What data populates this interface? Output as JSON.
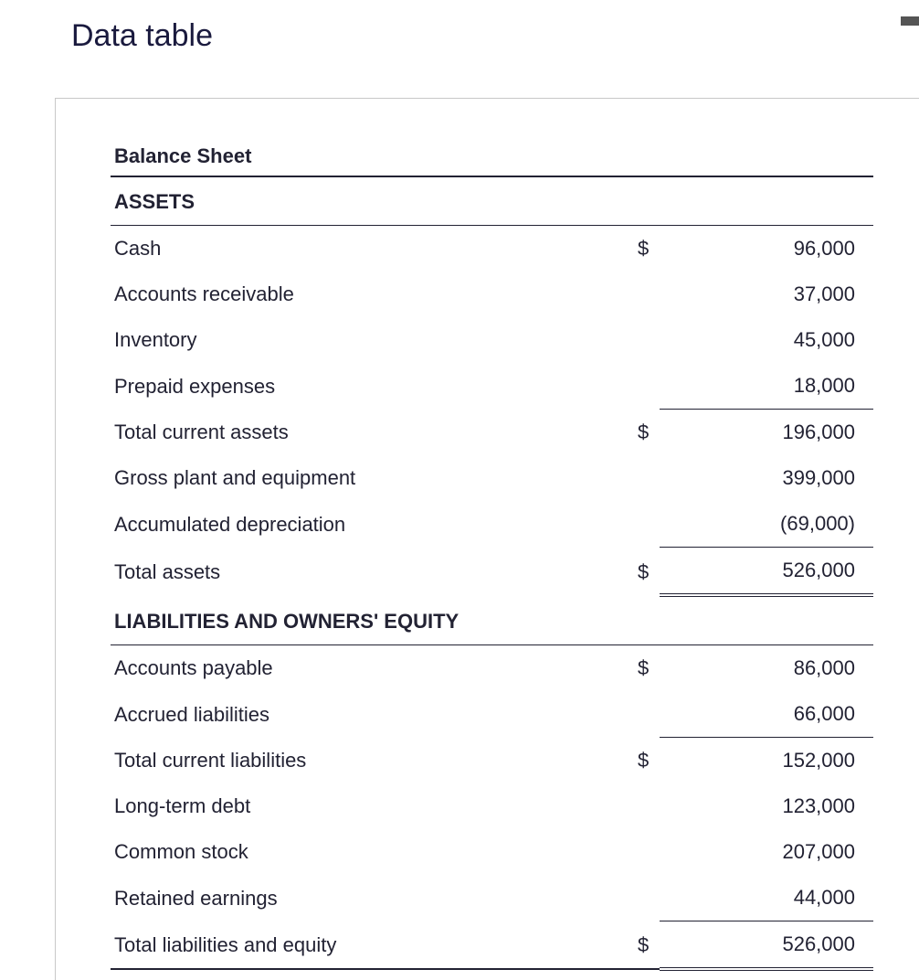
{
  "page_title": "Data table",
  "table_title": "Balance Sheet",
  "sections": {
    "assets_header": "ASSETS",
    "liabilities_header": "LIABILITIES AND OWNERS' EQUITY"
  },
  "rows": {
    "cash": {
      "label": "Cash",
      "dollar": "$",
      "value": "96,000"
    },
    "accounts_receivable": {
      "label": "Accounts receivable",
      "dollar": "",
      "value": "37,000"
    },
    "inventory": {
      "label": "Inventory",
      "dollar": "",
      "value": "45,000"
    },
    "prepaid_expenses": {
      "label": "Prepaid expenses",
      "dollar": "",
      "value": "18,000"
    },
    "total_current_assets": {
      "label": "Total current assets",
      "dollar": "$",
      "value": "196,000"
    },
    "gross_plant": {
      "label": "Gross plant and equipment",
      "dollar": "",
      "value": "399,000"
    },
    "accum_deprec": {
      "label": "Accumulated depreciation",
      "dollar": "",
      "value": "(69,000)"
    },
    "total_assets": {
      "label": "Total assets",
      "dollar": "$",
      "value": "526,000"
    },
    "accounts_payable": {
      "label": "Accounts payable",
      "dollar": "$",
      "value": "86,000"
    },
    "accrued_liabilities": {
      "label": "Accrued liabilities",
      "dollar": "",
      "value": "66,000"
    },
    "total_current_liab": {
      "label": "Total current liabilities",
      "dollar": "$",
      "value": "152,000"
    },
    "long_term_debt": {
      "label": "Long-term debt",
      "dollar": "",
      "value": "123,000"
    },
    "common_stock": {
      "label": "Common stock",
      "dollar": "",
      "value": "207,000"
    },
    "retained_earnings": {
      "label": "Retained earnings",
      "dollar": "",
      "value": "44,000"
    },
    "total_liab_equity": {
      "label": "Total liabilities and equity",
      "dollar": "$",
      "value": "526,000"
    }
  },
  "styling": {
    "body_bg": "#ffffff",
    "text_color": "#1a1a2e",
    "border_color": "#222233",
    "container_border": "#c8c8c8",
    "font_size_body": 22,
    "font_size_title": 34,
    "font_family": "Arial, Helvetica, sans-serif"
  }
}
